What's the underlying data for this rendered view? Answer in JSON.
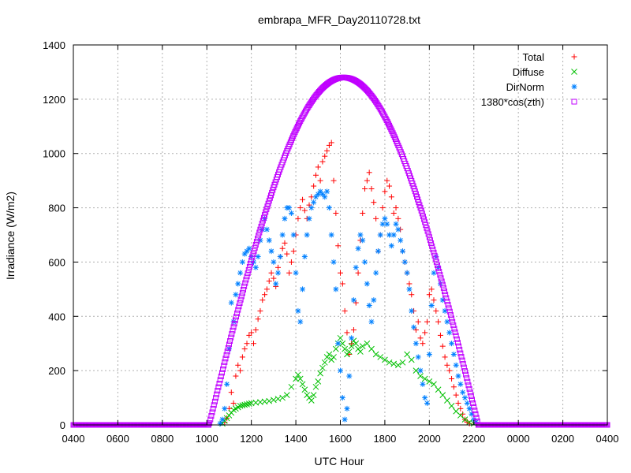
{
  "chart_data": {
    "type": "scatter",
    "title": "embrapa_MFR_Day20110728.txt",
    "xlabel": "UTC Hour",
    "ylabel": "Irradiance (W/m2)",
    "xlim": [
      4,
      28
    ],
    "ylim": [
      0,
      1400
    ],
    "x_ticks": [
      {
        "value": 4,
        "label": "0400"
      },
      {
        "value": 6,
        "label": "0600"
      },
      {
        "value": 8,
        "label": "0800"
      },
      {
        "value": 10,
        "label": "1000"
      },
      {
        "value": 12,
        "label": "1200"
      },
      {
        "value": 14,
        "label": "1400"
      },
      {
        "value": 16,
        "label": "1600"
      },
      {
        "value": 18,
        "label": "1800"
      },
      {
        "value": 20,
        "label": "2000"
      },
      {
        "value": 22,
        "label": "2200"
      },
      {
        "value": 24,
        "label": "0000"
      },
      {
        "value": 26,
        "label": "0200"
      },
      {
        "value": 28,
        "label": "0400"
      }
    ],
    "y_ticks": [
      0,
      200,
      400,
      600,
      800,
      1000,
      1200,
      1400
    ],
    "grid": true,
    "legend_position": "top-right",
    "colors": {
      "total": "#ff0000",
      "diffuse": "#00c000",
      "dirnorm": "#0080ff",
      "cos": "#c000ff"
    },
    "series": [
      {
        "name": "Total",
        "marker": "plus",
        "color": "#ff0000",
        "points": [
          [
            10.8,
            10
          ],
          [
            10.9,
            25
          ],
          [
            11.0,
            60
          ],
          [
            11.1,
            120
          ],
          [
            11.2,
            80
          ],
          [
            11.3,
            180
          ],
          [
            11.4,
            220
          ],
          [
            11.5,
            200
          ],
          [
            11.6,
            250
          ],
          [
            11.7,
            280
          ],
          [
            11.8,
            300
          ],
          [
            11.9,
            330
          ],
          [
            12.0,
            340
          ],
          [
            12.1,
            300
          ],
          [
            12.2,
            350
          ],
          [
            12.3,
            390
          ],
          [
            12.4,
            420
          ],
          [
            12.5,
            460
          ],
          [
            12.6,
            480
          ],
          [
            12.7,
            500
          ],
          [
            12.8,
            530
          ],
          [
            12.9,
            560
          ],
          [
            13.0,
            540
          ],
          [
            13.1,
            510
          ],
          [
            13.2,
            580
          ],
          [
            13.3,
            620
          ],
          [
            13.4,
            650
          ],
          [
            13.5,
            670
          ],
          [
            13.6,
            630
          ],
          [
            13.7,
            560
          ],
          [
            13.8,
            600
          ],
          [
            13.9,
            640
          ],
          [
            14.0,
            700
          ],
          [
            14.1,
            760
          ],
          [
            14.2,
            800
          ],
          [
            14.3,
            830
          ],
          [
            14.4,
            790
          ],
          [
            14.5,
            760
          ],
          [
            14.6,
            810
          ],
          [
            14.7,
            840
          ],
          [
            14.8,
            880
          ],
          [
            14.9,
            920
          ],
          [
            15.0,
            950
          ],
          [
            15.1,
            900
          ],
          [
            15.2,
            970
          ],
          [
            15.3,
            990
          ],
          [
            15.4,
            1010
          ],
          [
            15.5,
            1030
          ],
          [
            15.6,
            1040
          ],
          [
            15.7,
            900
          ],
          [
            15.8,
            780
          ],
          [
            15.9,
            660
          ],
          [
            16.0,
            560
          ],
          [
            16.1,
            520
          ],
          [
            16.2,
            420
          ],
          [
            16.3,
            340
          ],
          [
            16.4,
            260
          ],
          [
            16.5,
            300
          ],
          [
            16.6,
            350
          ],
          [
            16.7,
            450
          ],
          [
            16.8,
            560
          ],
          [
            16.9,
            680
          ],
          [
            17.0,
            780
          ],
          [
            17.1,
            870
          ],
          [
            17.2,
            900
          ],
          [
            17.3,
            930
          ],
          [
            17.4,
            870
          ],
          [
            17.5,
            820
          ],
          [
            17.6,
            760
          ],
          [
            17.7,
            640
          ],
          [
            17.8,
            700
          ],
          [
            17.9,
            800
          ],
          [
            18.0,
            860
          ],
          [
            18.1,
            900
          ],
          [
            18.2,
            880
          ],
          [
            18.3,
            840
          ],
          [
            18.4,
            780
          ],
          [
            18.5,
            800
          ],
          [
            18.6,
            760
          ],
          [
            18.7,
            720
          ],
          [
            18.8,
            640
          ],
          [
            18.9,
            600
          ],
          [
            19.0,
            560
          ],
          [
            19.1,
            520
          ],
          [
            19.2,
            480
          ],
          [
            19.3,
            420
          ],
          [
            19.4,
            350
          ],
          [
            19.5,
            380
          ],
          [
            19.6,
            320
          ],
          [
            19.7,
            300
          ],
          [
            19.8,
            340
          ],
          [
            19.9,
            380
          ],
          [
            20.0,
            480
          ],
          [
            20.1,
            500
          ],
          [
            20.2,
            460
          ],
          [
            20.3,
            420
          ],
          [
            20.4,
            380
          ],
          [
            20.5,
            330
          ],
          [
            20.6,
            290
          ],
          [
            20.7,
            250
          ],
          [
            20.8,
            220
          ],
          [
            20.9,
            200
          ],
          [
            21.0,
            170
          ],
          [
            21.1,
            140
          ],
          [
            21.2,
            110
          ],
          [
            21.3,
            80
          ],
          [
            21.4,
            60
          ],
          [
            21.5,
            40
          ],
          [
            21.6,
            20
          ],
          [
            21.7,
            10
          ],
          [
            21.8,
            5
          ]
        ]
      },
      {
        "name": "Diffuse",
        "marker": "cross",
        "color": "#00c000",
        "points": [
          [
            10.7,
            5
          ],
          [
            10.8,
            15
          ],
          [
            10.9,
            25
          ],
          [
            11.0,
            35
          ],
          [
            11.1,
            45
          ],
          [
            11.2,
            55
          ],
          [
            11.3,
            60
          ],
          [
            11.4,
            65
          ],
          [
            11.5,
            70
          ],
          [
            11.6,
            72
          ],
          [
            11.7,
            74
          ],
          [
            11.8,
            76
          ],
          [
            11.9,
            78
          ],
          [
            12.0,
            80
          ],
          [
            12.2,
            82
          ],
          [
            12.4,
            84
          ],
          [
            12.6,
            86
          ],
          [
            12.8,
            88
          ],
          [
            13.0,
            92
          ],
          [
            13.2,
            96
          ],
          [
            13.4,
            100
          ],
          [
            13.6,
            110
          ],
          [
            13.8,
            140
          ],
          [
            14.0,
            170
          ],
          [
            14.1,
            185
          ],
          [
            14.2,
            170
          ],
          [
            14.3,
            150
          ],
          [
            14.4,
            130
          ],
          [
            14.5,
            110
          ],
          [
            14.6,
            100
          ],
          [
            14.7,
            90
          ],
          [
            14.8,
            110
          ],
          [
            14.9,
            140
          ],
          [
            15.0,
            160
          ],
          [
            15.1,
            190
          ],
          [
            15.2,
            210
          ],
          [
            15.3,
            230
          ],
          [
            15.4,
            250
          ],
          [
            15.5,
            260
          ],
          [
            15.6,
            240
          ],
          [
            15.7,
            250
          ],
          [
            15.8,
            280
          ],
          [
            15.9,
            300
          ],
          [
            16.0,
            320
          ],
          [
            16.1,
            300
          ],
          [
            16.2,
            280
          ],
          [
            16.3,
            260
          ],
          [
            16.4,
            270
          ],
          [
            16.5,
            290
          ],
          [
            16.6,
            310
          ],
          [
            16.7,
            300
          ],
          [
            16.8,
            280
          ],
          [
            16.9,
            270
          ],
          [
            17.0,
            290
          ],
          [
            17.2,
            300
          ],
          [
            17.4,
            280
          ],
          [
            17.6,
            260
          ],
          [
            17.8,
            250
          ],
          [
            18.0,
            240
          ],
          [
            18.2,
            230
          ],
          [
            18.4,
            225
          ],
          [
            18.6,
            220
          ],
          [
            18.8,
            230
          ],
          [
            19.0,
            260
          ],
          [
            19.2,
            240
          ],
          [
            19.4,
            200
          ],
          [
            19.6,
            180
          ],
          [
            19.8,
            170
          ],
          [
            20.0,
            160
          ],
          [
            20.2,
            150
          ],
          [
            20.4,
            130
          ],
          [
            20.6,
            110
          ],
          [
            20.8,
            90
          ],
          [
            21.0,
            70
          ],
          [
            21.2,
            50
          ],
          [
            21.4,
            35
          ],
          [
            21.6,
            20
          ],
          [
            21.8,
            10
          ],
          [
            22.0,
            5
          ]
        ]
      },
      {
        "name": "DirNorm",
        "marker": "star",
        "color": "#0080ff",
        "points": [
          [
            10.6,
            5
          ],
          [
            10.7,
            20
          ],
          [
            10.8,
            60
          ],
          [
            10.9,
            150
          ],
          [
            11.0,
            280
          ],
          [
            11.1,
            450
          ],
          [
            11.2,
            380
          ],
          [
            11.3,
            480
          ],
          [
            11.4,
            520
          ],
          [
            11.5,
            560
          ],
          [
            11.6,
            600
          ],
          [
            11.7,
            630
          ],
          [
            11.8,
            640
          ],
          [
            11.9,
            650
          ],
          [
            12.0,
            620
          ],
          [
            12.1,
            600
          ],
          [
            12.2,
            580
          ],
          [
            12.3,
            620
          ],
          [
            12.4,
            680
          ],
          [
            12.5,
            720
          ],
          [
            12.6,
            760
          ],
          [
            12.7,
            720
          ],
          [
            12.8,
            680
          ],
          [
            12.9,
            640
          ],
          [
            13.0,
            600
          ],
          [
            13.1,
            520
          ],
          [
            13.2,
            560
          ],
          [
            13.3,
            620
          ],
          [
            13.4,
            700
          ],
          [
            13.5,
            760
          ],
          [
            13.6,
            800
          ],
          [
            13.7,
            800
          ],
          [
            13.8,
            780
          ],
          [
            13.9,
            700
          ],
          [
            14.0,
            560
          ],
          [
            14.1,
            420
          ],
          [
            14.2,
            380
          ],
          [
            14.3,
            500
          ],
          [
            14.4,
            620
          ],
          [
            14.5,
            700
          ],
          [
            14.6,
            760
          ],
          [
            14.7,
            800
          ],
          [
            14.8,
            820
          ],
          [
            14.9,
            840
          ],
          [
            15.0,
            850
          ],
          [
            15.1,
            860
          ],
          [
            15.2,
            850
          ],
          [
            15.3,
            840
          ],
          [
            15.4,
            860
          ],
          [
            15.5,
            800
          ],
          [
            15.6,
            700
          ],
          [
            15.7,
            600
          ],
          [
            15.8,
            500
          ],
          [
            15.9,
            300
          ],
          [
            16.0,
            200
          ],
          [
            16.1,
            100
          ],
          [
            16.2,
            20
          ],
          [
            16.3,
            60
          ],
          [
            16.4,
            180
          ],
          [
            16.5,
            320
          ],
          [
            16.6,
            460
          ],
          [
            16.7,
            580
          ],
          [
            16.8,
            650
          ],
          [
            16.9,
            700
          ],
          [
            17.0,
            680
          ],
          [
            17.1,
            600
          ],
          [
            17.2,
            520
          ],
          [
            17.3,
            440
          ],
          [
            17.4,
            380
          ],
          [
            17.5,
            460
          ],
          [
            17.6,
            560
          ],
          [
            17.7,
            640
          ],
          [
            17.8,
            700
          ],
          [
            17.9,
            740
          ],
          [
            18.0,
            760
          ],
          [
            18.1,
            740
          ],
          [
            18.2,
            700
          ],
          [
            18.3,
            660
          ],
          [
            18.4,
            700
          ],
          [
            18.5,
            740
          ],
          [
            18.6,
            720
          ],
          [
            18.7,
            680
          ],
          [
            18.8,
            640
          ],
          [
            18.9,
            600
          ],
          [
            19.0,
            560
          ],
          [
            19.1,
            500
          ],
          [
            19.2,
            420
          ],
          [
            19.3,
            360
          ],
          [
            19.4,
            300
          ],
          [
            19.5,
            250
          ],
          [
            19.6,
            200
          ],
          [
            19.7,
            150
          ],
          [
            19.8,
            100
          ],
          [
            19.9,
            80
          ],
          [
            20.0,
            260
          ],
          [
            20.1,
            440
          ],
          [
            20.2,
            560
          ],
          [
            20.3,
            620
          ],
          [
            20.4,
            580
          ],
          [
            20.5,
            520
          ],
          [
            20.6,
            460
          ],
          [
            20.7,
            420
          ],
          [
            20.8,
            380
          ],
          [
            20.9,
            340
          ],
          [
            21.0,
            300
          ],
          [
            21.1,
            260
          ],
          [
            21.2,
            220
          ],
          [
            21.3,
            180
          ],
          [
            21.4,
            150
          ],
          [
            21.5,
            120
          ],
          [
            21.6,
            100
          ],
          [
            21.7,
            80
          ],
          [
            21.8,
            60
          ],
          [
            21.9,
            40
          ],
          [
            22.0,
            20
          ],
          [
            22.1,
            10
          ]
        ]
      },
      {
        "name": "1380*cos(zth)",
        "marker": "square",
        "color": "#c000ff",
        "curve": {
          "start": 10.1,
          "end": 22.2,
          "peak_x": 16.15,
          "peak_y": 1280
        }
      }
    ]
  }
}
